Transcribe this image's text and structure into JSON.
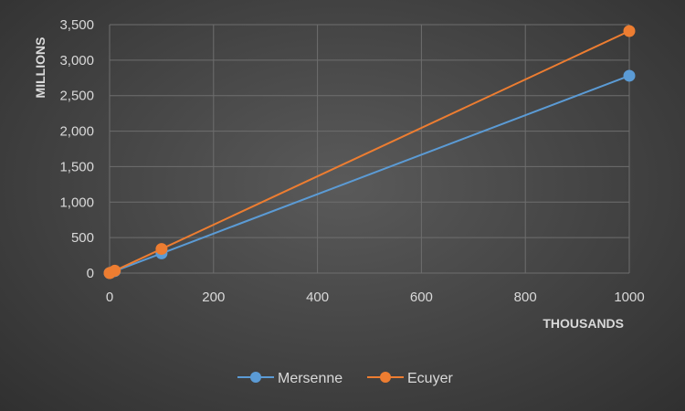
{
  "chart_data": {
    "type": "scatter",
    "xlabel": "THOUSANDS",
    "ylabel": "MILLIONS",
    "xlim": [
      0,
      1000
    ],
    "ylim": [
      0,
      3500
    ],
    "x_ticks": [
      0,
      200,
      400,
      600,
      800,
      1000
    ],
    "x_tick_labels": [
      "0",
      "200",
      "400",
      "600",
      "800",
      "1000"
    ],
    "y_ticks": [
      0,
      500,
      1000,
      1500,
      2000,
      2500,
      3000,
      3500
    ],
    "y_tick_labels": [
      "0",
      "500",
      "1,000",
      "1,500",
      "2,000",
      "2,500",
      "3,000",
      "3,500"
    ],
    "grid": true,
    "legend_position": "bottom",
    "series": [
      {
        "name": "Mersenne",
        "color": "#5b9bd5",
        "points": [
          [
            0,
            0
          ],
          [
            1,
            3
          ],
          [
            10,
            28
          ],
          [
            100,
            278
          ],
          [
            1000,
            2780
          ]
        ]
      },
      {
        "name": "Ecuyer",
        "color": "#ed7d31",
        "points": [
          [
            0,
            0
          ],
          [
            1,
            3
          ],
          [
            10,
            34
          ],
          [
            100,
            340
          ],
          [
            1000,
            3410
          ]
        ]
      }
    ]
  }
}
